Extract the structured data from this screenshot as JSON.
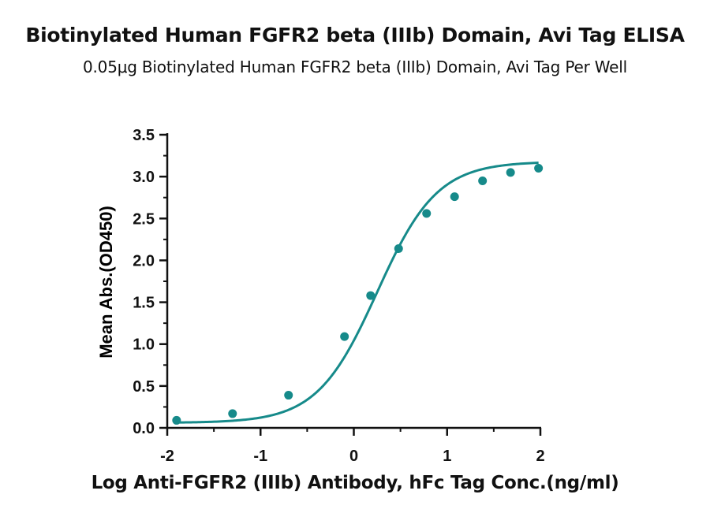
{
  "chart_data": {
    "type": "scatter",
    "title": "Biotinylated Human FGFR2 beta (IIIb) Domain, Avi Tag ELISA",
    "subtitle": "0.05μg Biotinylated Human FGFR2 beta (IIIb) Domain, Avi Tag Per Well",
    "xlabel": "Log Anti-FGFR2 (IIIb) Antibody, hFc Tag Conc.(ng/ml)",
    "ylabel": "Mean Abs.(OD450)",
    "xlim": [
      -2,
      2
    ],
    "ylim": [
      0,
      3.5
    ],
    "x_ticks": [
      "-2",
      "-1",
      "0",
      "1",
      "2"
    ],
    "y_ticks": [
      "0.0",
      "0.5",
      "1.0",
      "1.5",
      "2.0",
      "2.5",
      "3.0",
      "3.5"
    ],
    "grid": false,
    "color": "#168a8a",
    "series": [
      {
        "x": [
          -1.9,
          -1.3,
          -0.7,
          -0.1,
          0.18,
          0.48,
          0.78,
          1.08,
          1.38,
          1.68,
          1.98
        ],
        "values": [
          0.09,
          0.17,
          0.39,
          1.09,
          1.58,
          2.14,
          2.56,
          2.76,
          2.95,
          3.05,
          3.1
        ]
      }
    ],
    "fit_curve": "4PL sigmoid"
  }
}
